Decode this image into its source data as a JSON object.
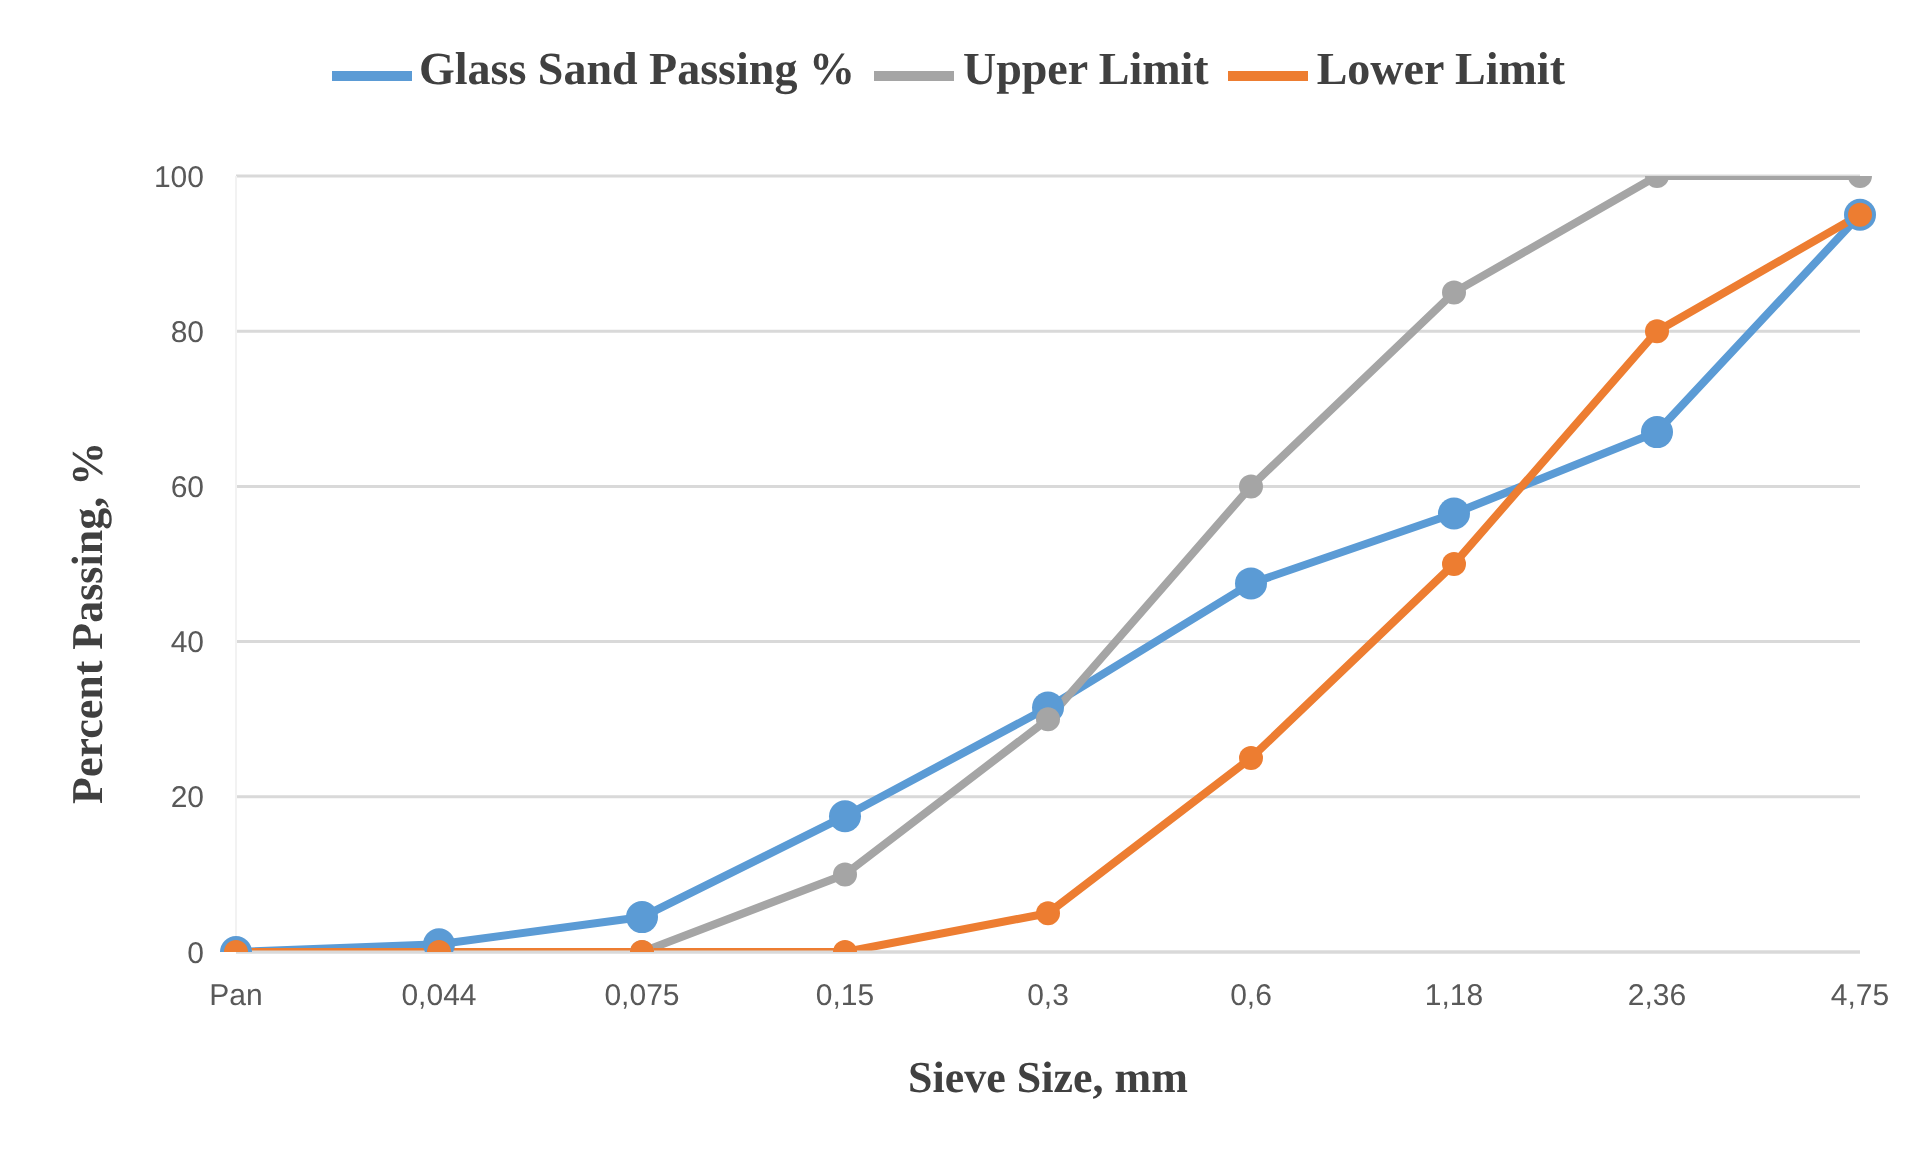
{
  "chart_data": {
    "type": "line",
    "xlabel": "Sieve Size, mm",
    "ylabel": "Percent Passing, %",
    "categories": [
      "Pan",
      "0,044",
      "0,075",
      "0,15",
      "0,3",
      "0,6",
      "1,18",
      "2,36",
      "4,75"
    ],
    "series": [
      {
        "name": "Glass Sand Passing %",
        "color": "#5b9bd5",
        "values": [
          0,
          1,
          4.5,
          17.5,
          31.5,
          47.5,
          56.5,
          67,
          95
        ]
      },
      {
        "name": "Upper Limit",
        "color": "#a5a5a5",
        "values": [
          null,
          null,
          0,
          10,
          30,
          60,
          85,
          100,
          100
        ]
      },
      {
        "name": "Lower Limit",
        "color": "#ed7d31",
        "values": [
          0,
          0,
          0,
          0,
          5,
          25,
          50,
          80,
          95
        ]
      }
    ],
    "ylim": [
      0,
      100
    ],
    "yticks": [
      0,
      20,
      40,
      60,
      80,
      100
    ],
    "grid": "y",
    "legend": "top",
    "marker": "circle",
    "line_style": "solid"
  }
}
